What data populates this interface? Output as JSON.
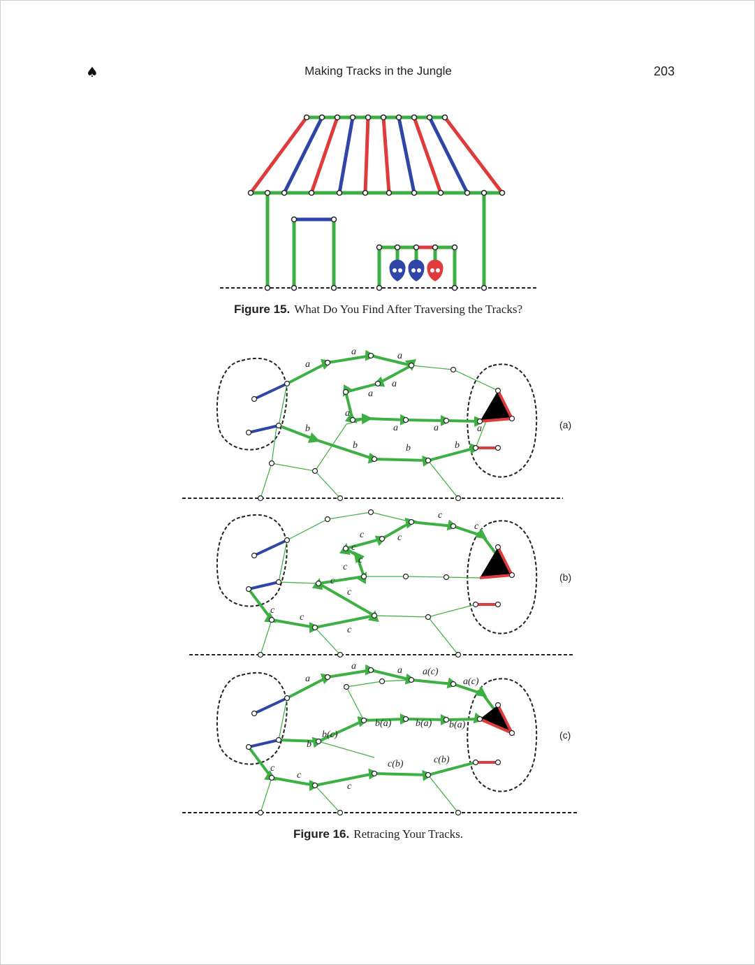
{
  "header": {
    "spade": "♠",
    "title": "Making Tracks in the Jungle",
    "page_number": "203"
  },
  "figure15": {
    "label": "Figure 15.",
    "text": "What Do You Find After Traversing the Tracks?"
  },
  "figure16": {
    "label": "Figure 16.",
    "text": "Retracing Your Tracks.",
    "panels": [
      {
        "tag": "(a)",
        "labels": [
          "a",
          "a",
          "a",
          "a",
          "a",
          "a",
          "a",
          "a",
          "a",
          "b",
          "b",
          "b",
          "b"
        ]
      },
      {
        "tag": "(b)",
        "labels": [
          "c",
          "c",
          "c",
          "c",
          "c",
          "c",
          "c",
          "c",
          "c",
          "c",
          "c",
          "c"
        ]
      },
      {
        "tag": "(c)",
        "labels": [
          "a",
          "a",
          "a",
          "a(c)",
          "a(c)",
          "b",
          "b(c)",
          "b(a)",
          "b(a)",
          "b(a)",
          "c(b)",
          "c(b)",
          "c",
          "c",
          "c"
        ]
      }
    ]
  },
  "colors": {
    "green": "#3cb043",
    "red": "#e03b3b",
    "blue": "#2f45a8",
    "dark": "#222222"
  }
}
